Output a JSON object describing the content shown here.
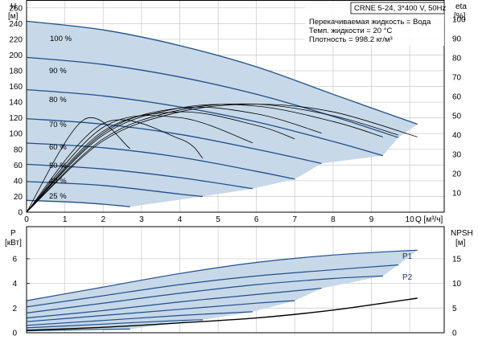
{
  "colors": {
    "region_fill": "#c7d8e8",
    "curve": "#1f4f8c",
    "grid": "#cfcfcf",
    "axis": "#000000",
    "eta_curve": "#000000"
  },
  "info_box": {
    "title": "CRNE 5-24, 3*400 V, 50Hz",
    "liquid": "Перекачиваемая жидкость = Вода",
    "temperature": "Темп. жидкости = 20 °C",
    "density": "Плотность = 998.2 кг/м³"
  },
  "chart_data": [
    {
      "type": "line",
      "panel": "head-efficiency",
      "xlabel": "Q [м³/ч]",
      "ylabel_name": "H",
      "ylabel_unit": "[м]",
      "y2label_name": "eta",
      "y2label_unit": "[%]",
      "xlim": [
        0,
        10.9
      ],
      "ylim": [
        0,
        270
      ],
      "y2lim": [
        0,
        110
      ],
      "x_ticks": [
        "0",
        "1",
        "2",
        "3",
        "4",
        "5",
        "6",
        "7",
        "8",
        "9",
        "10"
      ],
      "y_ticks": [
        "0",
        "20",
        "40",
        "60",
        "80",
        "100",
        "120",
        "140",
        "160",
        "180",
        "200",
        "220",
        "240",
        "260"
      ],
      "y2_ticks": [
        "10",
        "20",
        "30",
        "40",
        "50",
        "60",
        "70",
        "80",
        "90",
        "100"
      ],
      "grid": true,
      "speed_labels": [
        "100 %",
        "90 %",
        "80 %",
        "70 %",
        "60 %",
        "50 %",
        "40 %",
        "25 %"
      ],
      "head_series": [
        {
          "name": "100 %",
          "x": [
            0,
            2,
            4,
            6,
            8,
            10.2
          ],
          "y": [
            243,
            232,
            212,
            185,
            150,
            112
          ]
        },
        {
          "name": "90 %",
          "x": [
            0,
            2,
            4,
            6,
            8,
            9.7
          ],
          "y": [
            197,
            188,
            172,
            150,
            122,
            95
          ]
        },
        {
          "name": "80 %",
          "x": [
            0,
            2,
            4,
            6,
            8,
            9.3
          ],
          "y": [
            156,
            148,
            134,
            115,
            90,
            72
          ]
        },
        {
          "name": "70 %",
          "x": [
            0,
            2,
            4,
            6,
            7.7
          ],
          "y": [
            119,
            112,
            99,
            80,
            62
          ]
        },
        {
          "name": "60 %",
          "x": [
            0,
            2,
            4,
            6,
            7.0
          ],
          "y": [
            88,
            82,
            70,
            52,
            42
          ]
        },
        {
          "name": "50 %",
          "x": [
            0,
            2,
            4,
            5.9
          ],
          "y": [
            61,
            55,
            44,
            30
          ]
        },
        {
          "name": "40 %",
          "x": [
            0,
            2,
            4,
            4.6
          ],
          "y": [
            39,
            34,
            23,
            20
          ]
        },
        {
          "name": "25 %",
          "x": [
            0,
            1.5,
            2.7
          ],
          "y": [
            15,
            12,
            7
          ]
        }
      ],
      "eta_series": [
        {
          "x": [
            0,
            2,
            4,
            6,
            8,
            10.2
          ],
          "y": [
            0,
            37,
            52,
            56,
            52,
            39
          ]
        },
        {
          "x": [
            0,
            2,
            4,
            6,
            8,
            9.7
          ],
          "y": [
            0,
            38,
            53,
            56,
            50,
            40
          ]
        },
        {
          "x": [
            0,
            2,
            4,
            6,
            8,
            9.3
          ],
          "y": [
            0,
            40,
            54,
            55,
            47,
            39
          ]
        },
        {
          "x": [
            0,
            2,
            4,
            6,
            7.7
          ],
          "y": [
            0,
            41,
            54,
            51,
            41
          ]
        },
        {
          "x": [
            0,
            2,
            4,
            6,
            7.0
          ],
          "y": [
            0,
            42,
            52,
            45,
            38
          ]
        },
        {
          "x": [
            0,
            2,
            4,
            5.9
          ],
          "y": [
            0,
            44,
            49,
            36
          ]
        },
        {
          "x": [
            0,
            2,
            4,
            4.6
          ],
          "y": [
            0,
            46,
            38,
            28
          ]
        },
        {
          "x": [
            0,
            1.5,
            2.7
          ],
          "y": [
            0,
            48,
            33
          ]
        }
      ]
    },
    {
      "type": "line",
      "panel": "power-npsh",
      "xlim": [
        0,
        10.9
      ],
      "ylim": [
        0,
        8.6
      ],
      "y2lim": [
        0,
        21.5
      ],
      "ylabel_name": "P",
      "ylabel_unit": "[кВт]",
      "y2label_name": "NPSH",
      "y2label_unit": "[м]",
      "y_ticks": [
        "0",
        "2",
        "4",
        "6"
      ],
      "y2_ticks": [
        "0",
        "5",
        "10",
        "15"
      ],
      "grid": true,
      "series_labels": [
        "P1",
        "P2"
      ],
      "power_series": [
        {
          "name": "P1",
          "x": [
            0,
            2,
            4,
            6,
            8,
            10.2
          ],
          "y": [
            2.6,
            3.7,
            4.8,
            5.7,
            6.3,
            6.7
          ]
        },
        {
          "name": "P2",
          "x": [
            0,
            2,
            4,
            6,
            8,
            9.7
          ],
          "y": [
            2.1,
            3.0,
            3.9,
            4.6,
            5.1,
            5.5
          ]
        },
        {
          "x": [
            0,
            2,
            4,
            6,
            8,
            9.3
          ],
          "y": [
            1.6,
            2.4,
            3.2,
            3.9,
            4.4,
            4.6
          ]
        },
        {
          "x": [
            0,
            2,
            4,
            6,
            7.7
          ],
          "y": [
            1.2,
            1.8,
            2.5,
            3.1,
            3.6
          ]
        },
        {
          "x": [
            0,
            2,
            4,
            6,
            7.0
          ],
          "y": [
            0.9,
            1.4,
            1.9,
            2.4,
            2.6
          ]
        },
        {
          "x": [
            0,
            2,
            4,
            5.9
          ],
          "y": [
            0.6,
            1.0,
            1.4,
            1.7
          ]
        },
        {
          "x": [
            0,
            2,
            4,
            4.6
          ],
          "y": [
            0.4,
            0.7,
            1.0,
            1.05
          ]
        },
        {
          "x": [
            0,
            1.5,
            2.7
          ],
          "y": [
            0.15,
            0.25,
            0.3
          ]
        }
      ],
      "npsh_series": [
        {
          "x": [
            0,
            2,
            4,
            6,
            8,
            10.2
          ],
          "y": [
            0.5,
            1.1,
            2.0,
            3.0,
            4.6,
            7.0
          ]
        }
      ]
    }
  ]
}
